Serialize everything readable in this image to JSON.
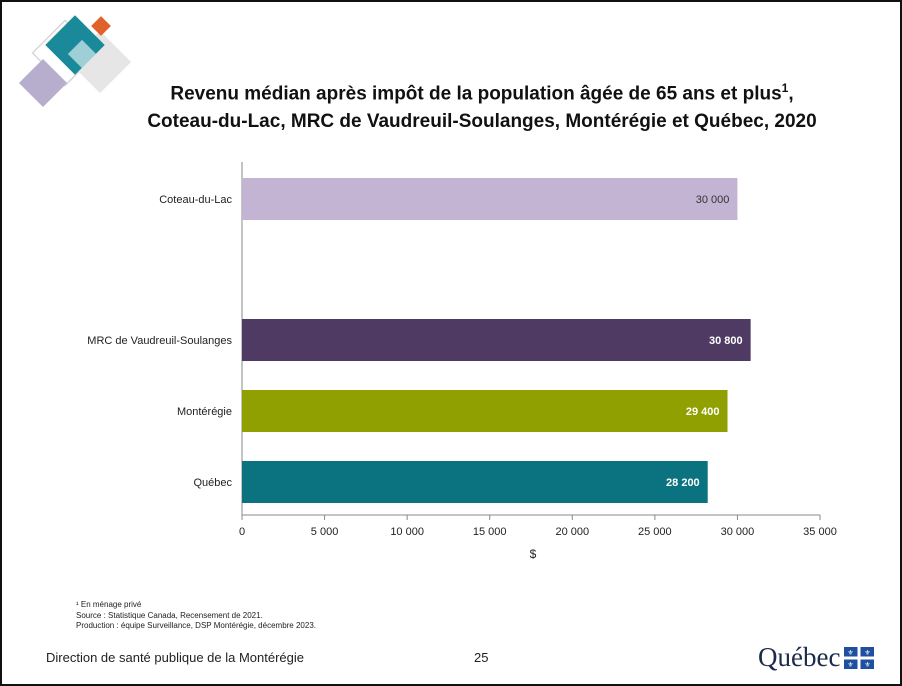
{
  "slide": {
    "title_line1": "Revenu médian après impôt de la population âgée de 65 ans et plus",
    "title_sup": "1",
    "title_suffix": ",",
    "title_line2": "Coteau-du-Lac, MRC de Vaudreuil-Soulanges, Montérégie et Québec, 2020",
    "footnotes": [
      "¹ En ménage privé",
      "Source : Statistique Canada, Recensement de 2021.",
      "Production : équipe Surveillance, DSP Montérégie, décembre 2023."
    ],
    "footer_left": "Direction de santé publique de la Montérégie",
    "page_number": "25",
    "brand": "Québec"
  },
  "colors": {
    "accent_teal": "#1a8a9a",
    "accent_orange": "#e0622a",
    "accent_lavender": "#b7aece"
  },
  "chart_data": {
    "type": "bar",
    "orientation": "horizontal",
    "title": "Revenu médian après impôt de la population âgée de 65 ans et plus¹, Coteau-du-Lac, MRC de Vaudreuil-Soulanges, Montérégie et Québec, 2020",
    "categories": [
      "Coteau-du-Lac",
      "MRC de Vaudreuil-Soulanges",
      "Montérégie",
      "Québec"
    ],
    "values": [
      30000,
      30800,
      29400,
      28200
    ],
    "value_labels": [
      "30 000",
      "30 800",
      "29 400",
      "28 200"
    ],
    "colors": [
      "#c4b4d4",
      "#4e3a63",
      "#8fa000",
      "#0b7380"
    ],
    "label_colors": [
      "#333333",
      "#ffffff",
      "#ffffff",
      "#ffffff"
    ],
    "xlabel": "$",
    "ylabel": "",
    "xlim": [
      0,
      35000
    ],
    "xticks": [
      0,
      5000,
      10000,
      15000,
      20000,
      25000,
      30000,
      35000
    ],
    "xtick_labels": [
      "0",
      "5 000",
      "10 000",
      "15 000",
      "20 000",
      "25 000",
      "30 000",
      "35 000"
    ],
    "grid": false,
    "legend": "none"
  }
}
